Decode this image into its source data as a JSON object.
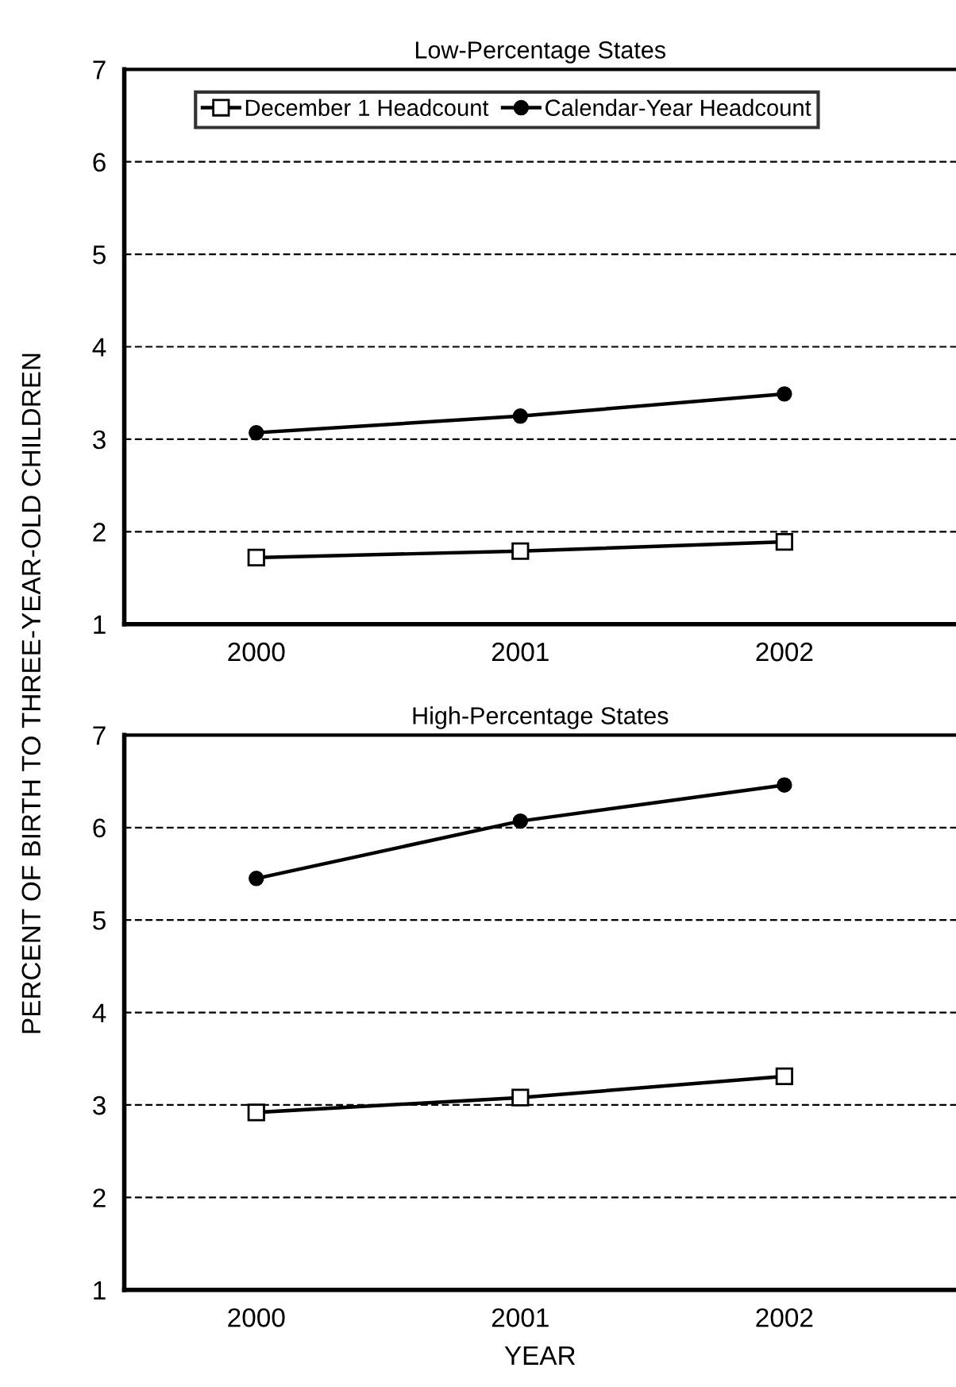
{
  "chart_data": [
    {
      "type": "line",
      "title": "Low-Percentage States",
      "ylabel": "PERCENT OF BIRTH TO THREE-YEAR-OLD CHILDREN",
      "categories": [
        "2000",
        "2001",
        "2002"
      ],
      "ylim": [
        1,
        7
      ],
      "yticks": [
        1,
        2,
        3,
        4,
        5,
        6,
        7
      ],
      "grid": "y",
      "legend": "top",
      "series": [
        {
          "name": "December 1 Headcount",
          "color": "#000000",
          "marker": "square",
          "values": [
            1.72,
            1.79,
            1.89
          ]
        },
        {
          "name": "Calendar-Year Headcount",
          "color": "#000000",
          "marker": "circle",
          "values": [
            3.07,
            3.25,
            3.49
          ]
        }
      ]
    },
    {
      "type": "line",
      "title": "High-Percentage States",
      "xlabel": "YEAR",
      "categories": [
        "2000",
        "2001",
        "2002"
      ],
      "ylim": [
        1,
        7
      ],
      "yticks": [
        1,
        2,
        3,
        4,
        5,
        6,
        7
      ],
      "grid": "y",
      "legend": false,
      "series": [
        {
          "color": "#000000",
          "marker": "square",
          "values": [
            2.92,
            3.08,
            3.31
          ]
        },
        {
          "color": "#000000",
          "marker": "circle",
          "values": [
            5.45,
            6.07,
            6.46
          ]
        }
      ]
    }
  ]
}
